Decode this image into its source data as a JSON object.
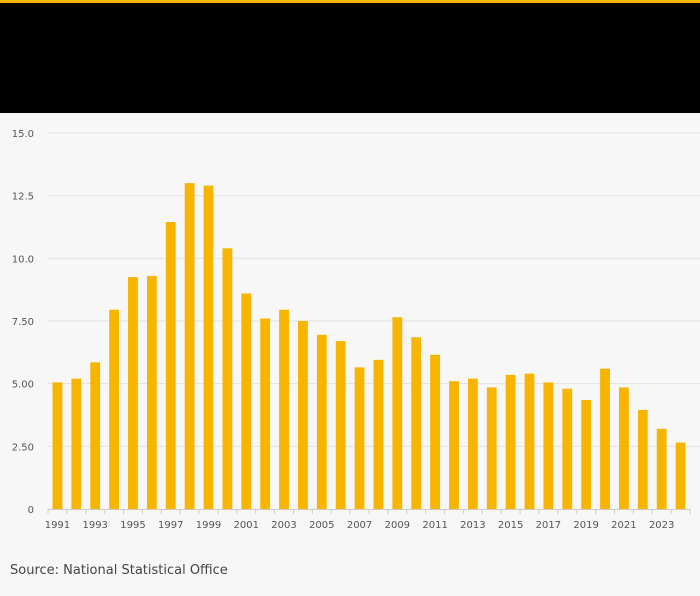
{
  "footer": {
    "source": "Source: National Statistical Office"
  },
  "colors": {
    "accent": "#f7b500",
    "header": "#000000",
    "bar": "#f7b500",
    "grid": "#e2e2e2",
    "background": "#f7f7f7"
  },
  "chart_data": {
    "type": "bar",
    "title": "",
    "xlabel": "",
    "ylabel": "",
    "categories": [
      "1991",
      "1992",
      "1993",
      "1994",
      "1995",
      "1996",
      "1997",
      "1998",
      "1999",
      "2000",
      "2001",
      "2002",
      "2003",
      "2004",
      "2005",
      "2006",
      "2007",
      "2008",
      "2009",
      "2010",
      "2011",
      "2012",
      "2013",
      "2014",
      "2015",
      "2016",
      "2017",
      "2018",
      "2019",
      "2020",
      "2021",
      "2022",
      "2023",
      "2024"
    ],
    "values": [
      5.05,
      5.2,
      5.85,
      7.95,
      9.25,
      9.3,
      11.45,
      13.0,
      12.9,
      10.4,
      8.6,
      7.6,
      7.95,
      7.5,
      6.95,
      6.7,
      5.65,
      5.95,
      7.65,
      6.85,
      6.15,
      5.1,
      5.2,
      4.85,
      5.35,
      5.4,
      5.05,
      4.8,
      4.35,
      5.6,
      4.85,
      3.95,
      3.2,
      2.65
    ],
    "ylim": [
      0,
      15
    ],
    "yticks": [
      0,
      2.5,
      5.0,
      7.5,
      10.0,
      12.5,
      15.0
    ],
    "ytick_labels": [
      "0",
      "2.50",
      "5.00",
      "7.50",
      "10.0",
      "12.5",
      "15.0"
    ],
    "xtick_labels": [
      "1991",
      "1993",
      "1995",
      "1997",
      "1999",
      "2001",
      "2003",
      "2005",
      "2007",
      "2009",
      "2011",
      "2013",
      "2015",
      "2017",
      "2019",
      "2021",
      "2023"
    ],
    "grid": true
  }
}
